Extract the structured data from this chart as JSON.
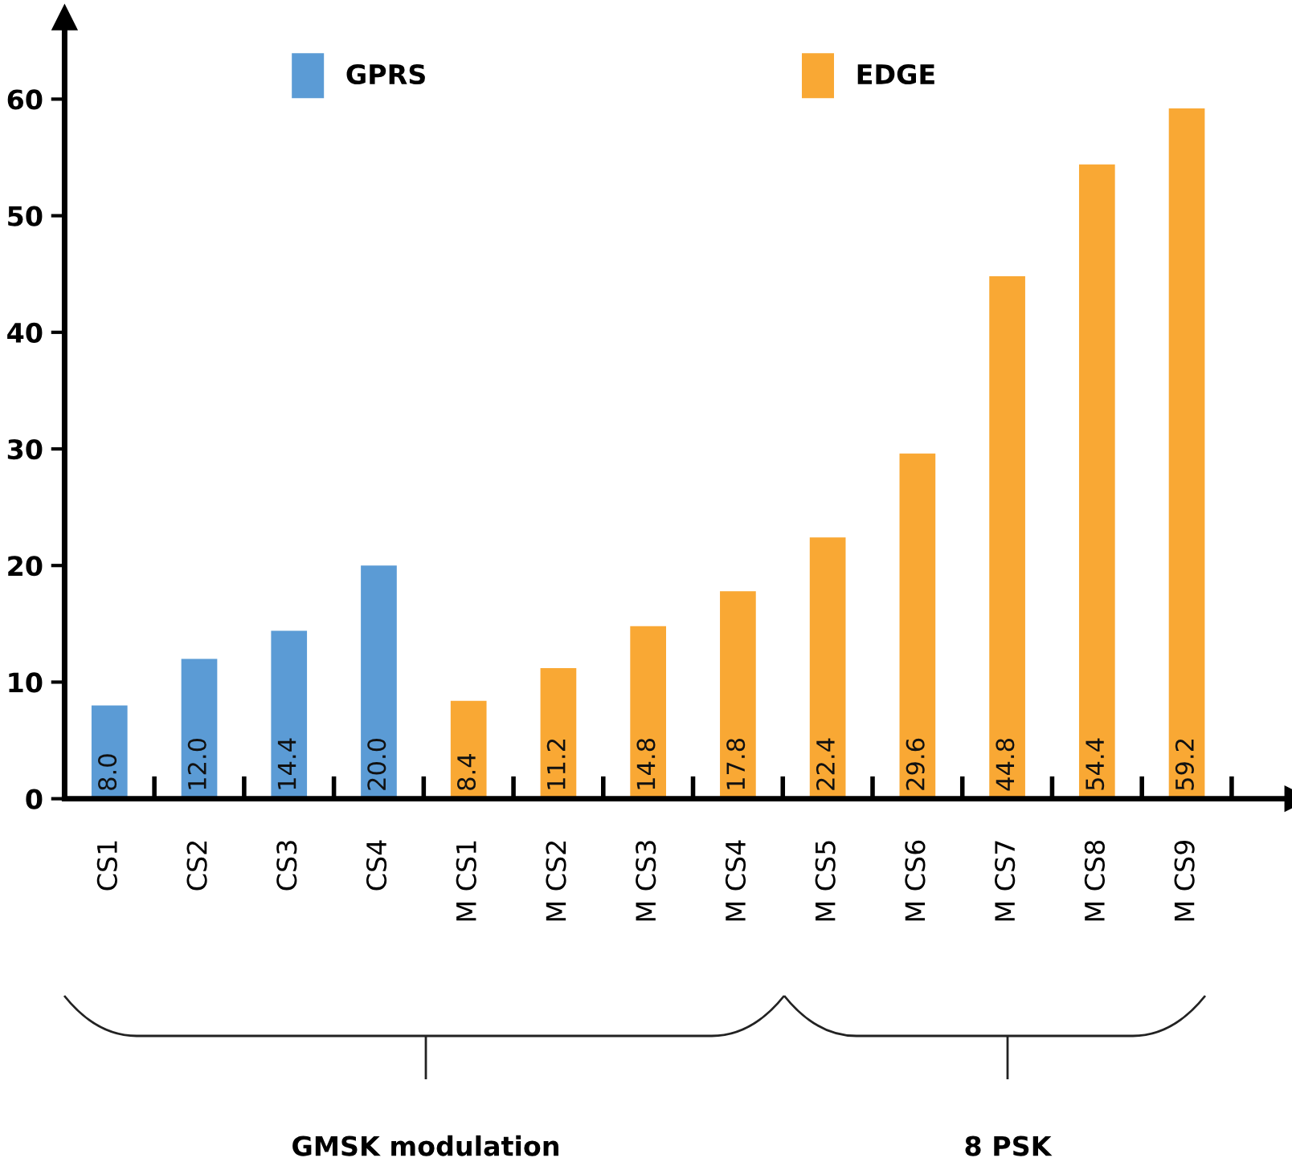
{
  "chart_data": {
    "type": "bar",
    "categories": [
      "CS1",
      "CS2",
      "CS3",
      "CS4",
      "M CS1",
      "M CS2",
      "M CS3",
      "M CS4",
      "M CS5",
      "M CS6",
      "M CS7",
      "M CS8",
      "M CS9"
    ],
    "series": [
      {
        "name": "GPRS",
        "color": "#5b9bd5",
        "values": [
          8.0,
          12.0,
          14.4,
          20.0,
          null,
          null,
          null,
          null,
          null,
          null,
          null,
          null,
          null
        ],
        "value_labels": [
          "8.0",
          "12.0",
          "14.4",
          "20.0",
          null,
          null,
          null,
          null,
          null,
          null,
          null,
          null,
          null
        ]
      },
      {
        "name": "EDGE",
        "color": "#f9a834",
        "values": [
          null,
          null,
          null,
          null,
          8.4,
          11.2,
          14.8,
          17.8,
          22.4,
          29.6,
          44.8,
          54.4,
          59.2
        ],
        "value_labels": [
          null,
          null,
          null,
          null,
          "8.4",
          "11.2",
          "14.8",
          "17.8",
          "22.4",
          "29.6",
          "44.8",
          "54.4",
          "59.2"
        ]
      }
    ],
    "ylim": [
      0,
      66
    ],
    "yticks": [
      0,
      10,
      20,
      30,
      40,
      50,
      60
    ],
    "grid": false,
    "legend": "top",
    "annotations": [
      "GMSK modulation",
      "8 PSK"
    ]
  }
}
